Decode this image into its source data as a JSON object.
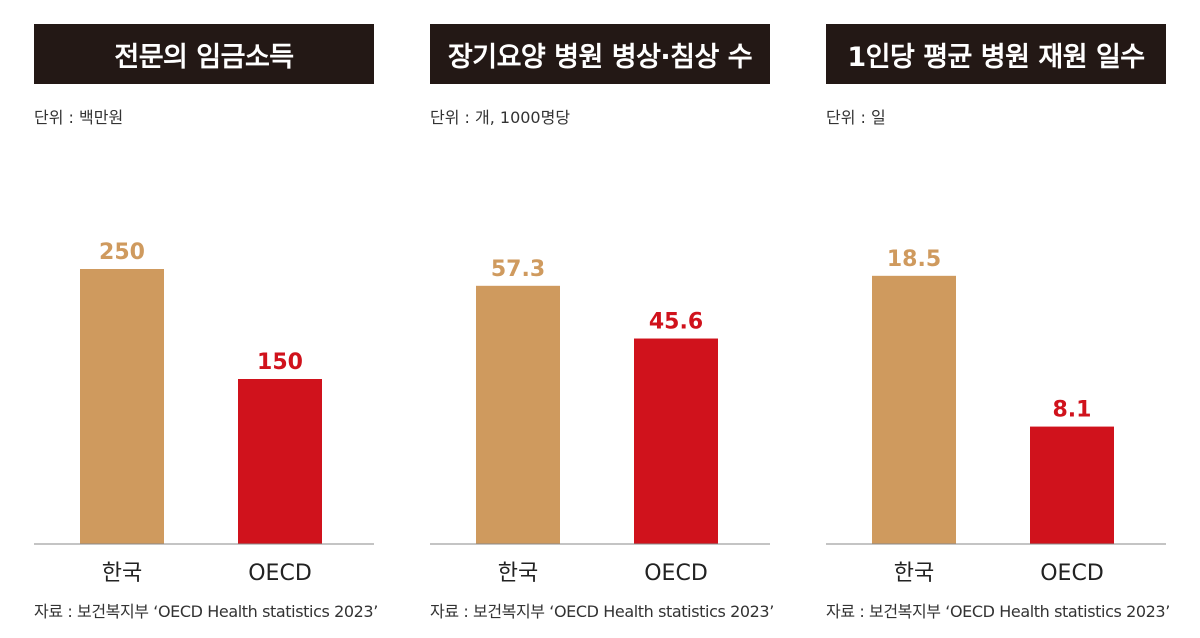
{
  "colors": {
    "korea": "#CF9A5E",
    "oecd": "#D0121C",
    "title_bg": "#231815",
    "axis": "#888888"
  },
  "panels": [
    {
      "title": "전문의 임금소득",
      "unit": "단위 : 백만원",
      "source": "자료 : 보건복지부 ‘OECD Health statistics 2023’"
    },
    {
      "title": "장기요양 병원 병상·침상 수",
      "unit": "단위 : 개, 1000명당",
      "source": "자료 : 보건복지부 ‘OECD Health statistics 2023’"
    },
    {
      "title": "1인당 평균 병원 재원 일수",
      "unit": "단위 : 일",
      "source": "자료 : 보건복지부 ‘OECD Health statistics 2023’"
    }
  ],
  "chart_data": [
    {
      "type": "bar",
      "title": "전문의 임금소득",
      "categories": [
        "한국",
        "OECD"
      ],
      "values": [
        250,
        150
      ],
      "value_labels": [
        "250",
        "150"
      ],
      "ylim": [
        0,
        340
      ],
      "grid": false
    },
    {
      "type": "bar",
      "title": "장기요양 병원 병상·침상 수",
      "categories": [
        "한국",
        "OECD"
      ],
      "values": [
        57.3,
        45.6
      ],
      "value_labels": [
        "57.3",
        "45.6"
      ],
      "ylim": [
        0,
        83
      ],
      "grid": false
    },
    {
      "type": "bar",
      "title": "1인당 평균 병원 재원 일수",
      "categories": [
        "한국",
        "OECD"
      ],
      "values": [
        18.5,
        8.1
      ],
      "value_labels": [
        "18.5",
        "8.1"
      ],
      "ylim": [
        0,
        25.8
      ],
      "grid": false
    }
  ]
}
